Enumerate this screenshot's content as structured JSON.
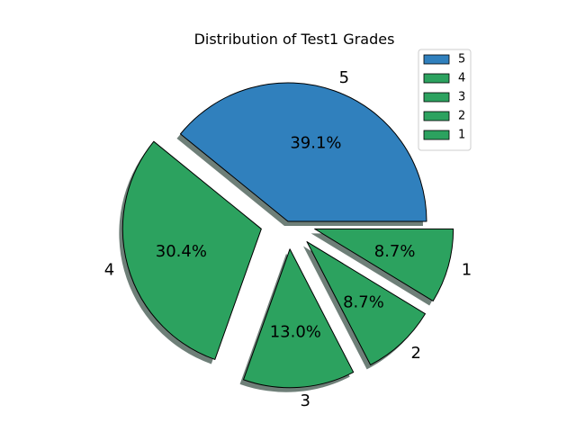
{
  "chart_data": {
    "type": "pie",
    "title": "Distribution of Test1 Grades",
    "slices": [
      {
        "label": "5",
        "percent_label": "39.1%",
        "value": 39.1,
        "color": "#3080bd",
        "exploded": false
      },
      {
        "label": "4",
        "percent_label": "30.4%",
        "value": 30.4,
        "color": "#2ca25f",
        "exploded": true
      },
      {
        "label": "3",
        "percent_label": "13.0%",
        "value": 13.0,
        "color": "#2ca25f",
        "exploded": true
      },
      {
        "label": "2",
        "percent_label": "8.7%",
        "value": 8.7,
        "color": "#2ca25f",
        "exploded": true
      },
      {
        "label": "1",
        "percent_label": "8.7%",
        "value": 8.7,
        "color": "#2ca25f",
        "exploded": true
      }
    ],
    "start_angle_deg": 0,
    "shadow": true,
    "legend": {
      "position": "top-right",
      "entries": [
        {
          "label": "5",
          "color": "#3080bd"
        },
        {
          "label": "4",
          "color": "#2ca25f"
        },
        {
          "label": "3",
          "color": "#2ca25f"
        },
        {
          "label": "2",
          "color": "#2ca25f"
        },
        {
          "label": "1",
          "color": "#2ca25f"
        }
      ]
    }
  }
}
